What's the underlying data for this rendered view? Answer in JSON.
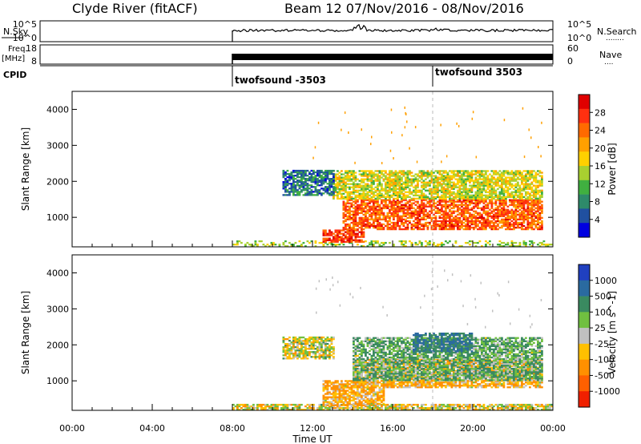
{
  "header": {
    "station_title": "Clyde River (fitACF)",
    "beam_title": "Beam 12  07/Nov/2016 - 08/Nov/2016"
  },
  "top_panels": {
    "nsky": {
      "label": "N.Sky",
      "left_ticks": [
        "10^5",
        "10^0"
      ],
      "right_ticks": [
        "10^5",
        "10^0"
      ],
      "right_label": "N.Search",
      "right_dots": "........"
    },
    "freq": {
      "label_line1": "Freq.",
      "label_line2": "[MHz]",
      "left_ticks": [
        "18",
        "8"
      ],
      "right_ticks": [
        "60",
        "0"
      ],
      "right_label": "Nave",
      "right_dots": "...."
    },
    "cpid": {
      "label": "CPID",
      "segments": [
        "twofsound -3503",
        "twofsound 3503"
      ]
    }
  },
  "x_axis": {
    "label": "Time UT",
    "ticks": [
      "00:00",
      "04:00",
      "08:00",
      "12:00",
      "16:00",
      "20:00",
      "00:00"
    ]
  },
  "power_panel": {
    "ylabel": "Slant Range [km]",
    "yticks": [
      "4000",
      "3000",
      "2000",
      "1000"
    ],
    "colorbar_label": "Power [dB]",
    "colorbar_ticks": [
      "28",
      "24",
      "20",
      "16",
      "12",
      "8",
      "4"
    ],
    "colors": [
      "#e00000",
      "#ff3010",
      "#ff6a00",
      "#ffa000",
      "#ffd000",
      "#a8d030",
      "#40b040",
      "#2e8a6a",
      "#2050a0",
      "#0000e0"
    ]
  },
  "velocity_panel": {
    "ylabel": "Slant Range [km]",
    "yticks": [
      "4000",
      "3000",
      "2000",
      "1000"
    ],
    "colorbar_label": "Velocity [m s^-1]",
    "colorbar_ticks": [
      "1000",
      "500",
      "100",
      "25",
      "-25",
      "-100",
      "-500",
      "-1000"
    ],
    "colors": [
      "#2040c0",
      "#2a6aa0",
      "#3a8a60",
      "#70c040",
      "#c0c0c0",
      "#ffc000",
      "#ff9000",
      "#ff6000",
      "#f02000"
    ]
  },
  "chart_data": [
    {
      "type": "heatmap",
      "title": "Clyde River (fitACF) Beam 12 07/Nov/2016 - 08/Nov/2016",
      "variable": "Power",
      "xlabel": "Time UT",
      "ylabel": "Slant Range [km]",
      "x_range_hours": [
        0,
        24
      ],
      "y_range_km": [
        180,
        4500
      ],
      "color_range_dB": [
        0,
        32
      ],
      "regions": [
        {
          "t_start": 8.0,
          "t_end": 24.0,
          "range_start": 180,
          "range_end": 350,
          "value": 14
        },
        {
          "t_start": 12.5,
          "t_end": 14.5,
          "range_start": 300,
          "range_end": 650,
          "value": 28
        },
        {
          "t_start": 13.5,
          "t_end": 23.5,
          "range_start": 650,
          "range_end": 1500,
          "value": 26
        },
        {
          "t_start": 13.0,
          "t_end": 23.5,
          "range_start": 1500,
          "range_end": 2300,
          "value": 16
        },
        {
          "t_start": 10.5,
          "t_end": 13.0,
          "range_start": 1600,
          "range_end": 2300,
          "value": 6
        }
      ]
    },
    {
      "type": "heatmap",
      "title": "Clyde River (fitACF) Beam 12 07/Nov/2016 - 08/Nov/2016",
      "variable": "Velocity",
      "xlabel": "Time UT",
      "ylabel": "Slant Range [km]",
      "x_range_hours": [
        0,
        24
      ],
      "y_range_km": [
        180,
        4500
      ],
      "color_range_ms": [
        -1000,
        1000
      ],
      "regions": [
        {
          "t_start": 8.0,
          "t_end": 24.0,
          "range_start": 180,
          "range_end": 350,
          "value": -25
        },
        {
          "t_start": 12.5,
          "t_end": 15.5,
          "range_start": 300,
          "range_end": 1000,
          "value": -100
        },
        {
          "t_start": 14.0,
          "t_end": 23.5,
          "range_start": 800,
          "range_end": 1600,
          "value": -100
        },
        {
          "t_start": 14.0,
          "t_end": 23.5,
          "range_start": 1000,
          "range_end": 2200,
          "value": 100
        },
        {
          "t_start": 17.0,
          "t_end": 20.0,
          "range_start": 1800,
          "range_end": 2300,
          "value": 500
        },
        {
          "t_start": 10.5,
          "t_end": 13.0,
          "range_start": 1600,
          "range_end": 2200,
          "value": 0
        }
      ]
    }
  ]
}
